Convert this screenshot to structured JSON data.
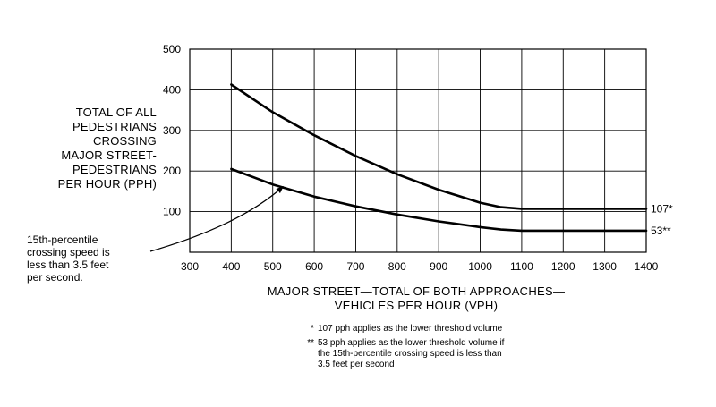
{
  "chart_data": {
    "type": "line",
    "xlabel_lines": [
      "MAJOR STREET—TOTAL OF BOTH APPROACHES—",
      "VEHICLES PER HOUR (VPH)"
    ],
    "ylabel_lines": [
      "TOTAL OF ALL",
      "PEDESTRIANS",
      "CROSSING",
      "MAJOR STREET-",
      "PEDESTRIANS",
      "PER HOUR (PPH)"
    ],
    "xlim": [
      300,
      1400
    ],
    "ylim": [
      0,
      500
    ],
    "x_ticks": [
      300,
      400,
      500,
      600,
      700,
      800,
      900,
      1000,
      1100,
      1200,
      1300,
      1400
    ],
    "x_tick_labels": [
      "300",
      "400",
      "500",
      "600",
      "700",
      "800",
      "900",
      "1000",
      "1100",
      "1200",
      "1300",
      "1400"
    ],
    "y_ticks": [
      100,
      200,
      300,
      400,
      500
    ],
    "y_tick_labels": [
      "100",
      "200",
      "300",
      "400",
      "500"
    ],
    "grid": true,
    "series": [
      {
        "end_label": "107*",
        "points": [
          [
            400,
            413
          ],
          [
            500,
            345
          ],
          [
            600,
            288
          ],
          [
            700,
            237
          ],
          [
            800,
            192
          ],
          [
            900,
            154
          ],
          [
            1000,
            122
          ],
          [
            1050,
            111
          ],
          [
            1100,
            107
          ],
          [
            1400,
            107
          ]
        ]
      },
      {
        "end_label": "53**",
        "points": [
          [
            400,
            205
          ],
          [
            500,
            167
          ],
          [
            600,
            137
          ],
          [
            700,
            113
          ],
          [
            800,
            93
          ],
          [
            900,
            76
          ],
          [
            1000,
            62
          ],
          [
            1050,
            56
          ],
          [
            1100,
            53
          ],
          [
            1400,
            53
          ]
        ]
      }
    ],
    "annotation": {
      "lines": [
        "15th-percentile",
        "crossing speed is",
        "less than 3.5 feet",
        "per second."
      ]
    },
    "footnotes": [
      {
        "mark": "*",
        "lines": [
          "107 pph applies as the lower threshold volume"
        ]
      },
      {
        "mark": "**",
        "lines": [
          "53 pph applies as the lower threshold volume if",
          "the 15th-percentile crossing speed is less than",
          "3.5 feet per second"
        ]
      }
    ]
  }
}
